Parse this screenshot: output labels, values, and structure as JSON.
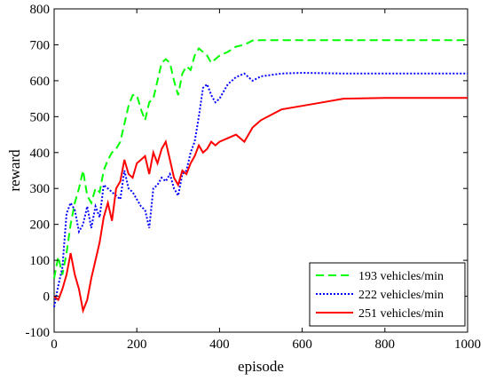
{
  "chart_data": {
    "type": "line",
    "title": "",
    "xlabel": "episode",
    "ylabel": "reward",
    "xlim": [
      0,
      1000
    ],
    "ylim": [
      -100,
      800
    ],
    "xticks": [
      0,
      200,
      400,
      600,
      800,
      1000
    ],
    "yticks": [
      -100,
      0,
      100,
      200,
      300,
      400,
      500,
      600,
      700,
      800
    ],
    "grid": false,
    "legend_position": "bottom-right",
    "series": [
      {
        "name": "193 vehicles/min",
        "color": "#00ff00",
        "style": "dashed",
        "x": [
          0,
          10,
          20,
          30,
          40,
          50,
          60,
          70,
          80,
          90,
          100,
          110,
          120,
          130,
          140,
          150,
          160,
          170,
          180,
          190,
          200,
          210,
          220,
          230,
          240,
          250,
          260,
          270,
          280,
          290,
          300,
          310,
          320,
          330,
          340,
          350,
          360,
          370,
          380,
          390,
          400,
          420,
          440,
          460,
          480,
          500,
          550,
          600,
          650,
          700,
          800,
          900,
          1000
        ],
        "y": [
          50,
          110,
          60,
          120,
          200,
          260,
          300,
          350,
          280,
          260,
          300,
          290,
          350,
          380,
          400,
          410,
          430,
          480,
          530,
          560,
          560,
          520,
          490,
          540,
          550,
          600,
          650,
          660,
          650,
          600,
          560,
          620,
          640,
          630,
          670,
          690,
          680,
          670,
          650,
          660,
          670,
          680,
          695,
          700,
          712,
          713,
          713,
          713,
          713,
          713,
          713,
          713,
          713
        ]
      },
      {
        "name": "222 vehicles/min",
        "color": "#0000ff",
        "style": "dotted",
        "x": [
          0,
          10,
          20,
          30,
          40,
          50,
          60,
          70,
          80,
          90,
          100,
          110,
          120,
          130,
          140,
          150,
          160,
          170,
          180,
          190,
          200,
          210,
          220,
          230,
          240,
          250,
          260,
          270,
          280,
          290,
          300,
          310,
          320,
          330,
          340,
          350,
          360,
          370,
          380,
          390,
          400,
          420,
          440,
          460,
          480,
          500,
          550,
          600,
          650,
          700,
          800,
          900,
          1000
        ],
        "y": [
          -30,
          30,
          80,
          230,
          260,
          240,
          180,
          200,
          250,
          190,
          250,
          220,
          310,
          300,
          290,
          280,
          270,
          350,
          300,
          290,
          270,
          250,
          240,
          190,
          300,
          310,
          330,
          320,
          340,
          300,
          280,
          340,
          350,
          400,
          430,
          500,
          580,
          590,
          560,
          540,
          550,
          590,
          610,
          620,
          600,
          612,
          620,
          622,
          621,
          620,
          620,
          620,
          620
        ]
      },
      {
        "name": "251 vehicles/min",
        "color": "#ff0000",
        "style": "solid",
        "x": [
          0,
          10,
          20,
          30,
          40,
          50,
          60,
          70,
          80,
          90,
          100,
          110,
          120,
          130,
          140,
          150,
          160,
          170,
          180,
          190,
          200,
          210,
          220,
          230,
          240,
          250,
          260,
          270,
          280,
          290,
          300,
          310,
          320,
          330,
          340,
          350,
          360,
          370,
          380,
          390,
          400,
          420,
          440,
          460,
          480,
          500,
          550,
          600,
          650,
          700,
          800,
          900,
          1000
        ],
        "y": [
          0,
          -10,
          20,
          60,
          120,
          60,
          20,
          -40,
          -10,
          50,
          100,
          150,
          220,
          260,
          210,
          300,
          320,
          380,
          340,
          330,
          370,
          380,
          390,
          340,
          400,
          370,
          410,
          430,
          380,
          330,
          310,
          350,
          340,
          370,
          390,
          420,
          400,
          410,
          430,
          420,
          430,
          440,
          450,
          430,
          470,
          490,
          520,
          530,
          540,
          550,
          552,
          552,
          552
        ]
      }
    ]
  }
}
